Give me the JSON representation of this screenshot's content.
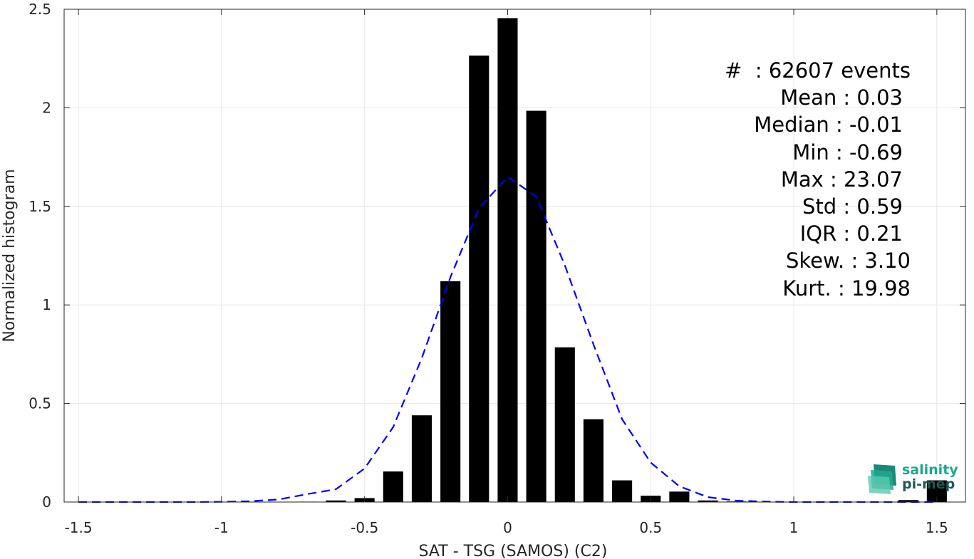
{
  "chart_data": {
    "type": "bar",
    "xlabel": "SAT - TSG (SAMOS) (C2)",
    "ylabel": "Normalized histogram",
    "xlim": [
      -1.55,
      1.6
    ],
    "ylim": [
      0,
      2.5
    ],
    "grid": true,
    "x_ticks": [
      -1.5,
      -1,
      -0.5,
      0,
      0.5,
      1,
      1.5
    ],
    "x_tick_labels": [
      "-1.5",
      "-1",
      "-0.5",
      "0",
      "0.5",
      "1",
      "1.5"
    ],
    "y_ticks": [
      0,
      0.5,
      1,
      1.5,
      2,
      2.5
    ],
    "y_tick_labels": [
      "0",
      "0.5",
      "1",
      "1.5",
      "2",
      "2.5"
    ],
    "bar_width": 0.07,
    "bars": {
      "x": [
        -1.5,
        -1.4,
        -1.3,
        -1.2,
        -1.1,
        -1.0,
        -0.9,
        -0.8,
        -0.7,
        -0.6,
        -0.5,
        -0.4,
        -0.3,
        -0.2,
        -0.1,
        0.0,
        0.1,
        0.2,
        0.3,
        0.4,
        0.5,
        0.6,
        0.7,
        0.8,
        0.9,
        1.0,
        1.1,
        1.2,
        1.3,
        1.4,
        1.5
      ],
      "values": [
        0,
        0,
        0,
        0,
        0,
        0,
        0,
        0,
        0.002,
        0.008,
        0.02,
        0.155,
        0.44,
        1.12,
        2.265,
        2.455,
        1.985,
        0.785,
        0.42,
        0.11,
        0.032,
        0.053,
        0.008,
        0.003,
        0.001,
        0,
        0,
        0,
        0.001,
        0.01,
        0.11
      ]
    },
    "fit_curve": {
      "style": "dashed",
      "x": [
        -1.5,
        -1.4,
        -1.3,
        -1.2,
        -1.1,
        -1.0,
        -0.9,
        -0.8,
        -0.7,
        -0.6,
        -0.5,
        -0.4,
        -0.3,
        -0.2,
        -0.1,
        0.0,
        0.1,
        0.2,
        0.3,
        0.4,
        0.5,
        0.6,
        0.7,
        0.8,
        0.9,
        1.0,
        1.1,
        1.2,
        1.3,
        1.4,
        1.5
      ],
      "y": [
        0,
        0,
        0,
        0,
        0,
        0.001,
        0.004,
        0.013,
        0.04,
        0.065,
        0.17,
        0.38,
        0.73,
        1.14,
        1.49,
        1.65,
        1.55,
        1.2,
        0.8,
        0.42,
        0.2,
        0.08,
        0.025,
        0.007,
        0.002,
        0,
        0,
        0,
        0,
        0,
        0
      ]
    }
  },
  "colors": {
    "bars": "#000000",
    "fit_curve": "#0000ff",
    "grid": "#e6e6e6",
    "axes": "#262626",
    "logo_primary": "#1aaa8c",
    "logo_secondary": "#1a5a55"
  },
  "stats": [
    "#  : 62607 events",
    "Mean : 0.03",
    "Median : -0.01",
    "Min : -0.69",
    "Max : 23.07",
    "Std : 0.59",
    "IQR : 0.21",
    "Skew. : 3.10",
    "Kurt. : 19.98"
  ],
  "logo": {
    "line1": "salinity",
    "line2": "pi-mep",
    "icon": "wave-layers-icon"
  }
}
